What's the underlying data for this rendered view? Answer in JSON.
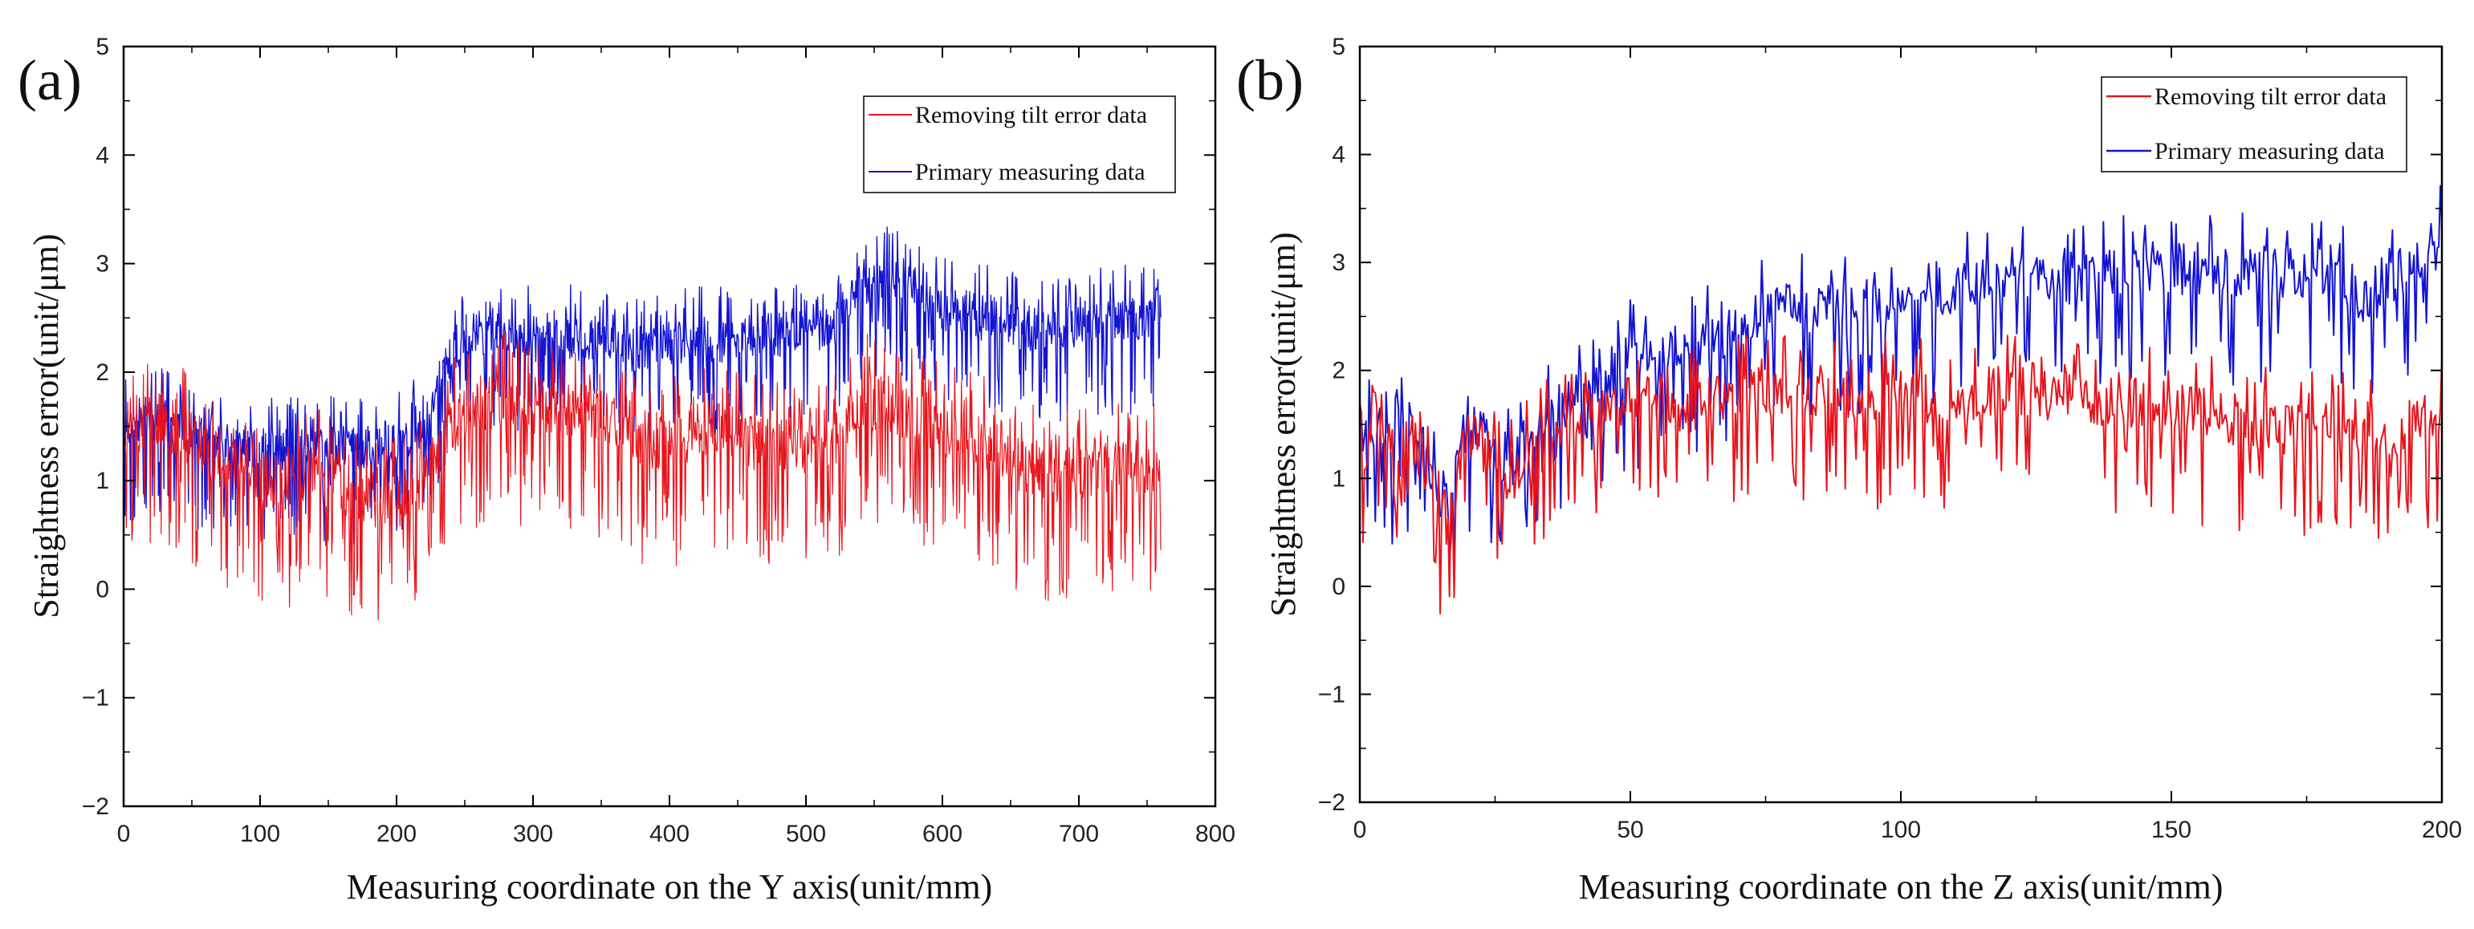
{
  "figure": {
    "background": "#ffffff"
  },
  "chart_data": [
    {
      "type": "line",
      "panel_label": "(a)",
      "xlabel": "Measuring coordinate on the Y axis(unit/mm)",
      "ylabel": "Straightness error(unit/μm)",
      "xlim": [
        0,
        800
      ],
      "ylim": [
        -2,
        5
      ],
      "xticks": [
        0,
        100,
        200,
        300,
        400,
        500,
        600,
        700,
        800
      ],
      "yticks": [
        -2,
        -1,
        0,
        1,
        2,
        3,
        4,
        5
      ],
      "grid": false,
      "legend_position": "top-right",
      "x_points": [
        0,
        20,
        40,
        60,
        80,
        100,
        120,
        140,
        160,
        180,
        200,
        220,
        240,
        260,
        280,
        300,
        320,
        340,
        360,
        380,
        400,
        420,
        440,
        460,
        480,
        500,
        520,
        540,
        560,
        580,
        600,
        620,
        640,
        660,
        680,
        700,
        720,
        740,
        760
      ],
      "series": [
        {
          "name": "Removing tilt error data",
          "color": "#e8141c",
          "values": [
            1.4,
            1.6,
            1.5,
            1.3,
            1.1,
            1.0,
            1.0,
            1.05,
            0.95,
            0.85,
            0.8,
            1.0,
            1.5,
            1.7,
            1.75,
            1.7,
            1.7,
            1.65,
            1.6,
            1.4,
            1.35,
            1.4,
            1.45,
            1.35,
            1.3,
            1.3,
            1.35,
            1.75,
            1.7,
            1.6,
            1.5,
            1.4,
            1.3,
            1.1,
            1.05,
            1.1,
            1.15,
            1.1,
            1.1
          ],
          "noise": 0.45
        },
        {
          "name": "Primary measuring data",
          "color": "#1414d2",
          "values": [
            1.5,
            1.6,
            1.5,
            1.4,
            1.3,
            1.3,
            1.3,
            1.35,
            1.3,
            1.3,
            1.35,
            1.5,
            2.2,
            2.35,
            2.35,
            2.3,
            2.35,
            2.3,
            2.2,
            2.2,
            2.25,
            2.3,
            2.3,
            2.3,
            2.35,
            2.4,
            2.4,
            2.8,
            2.85,
            2.8,
            2.6,
            2.5,
            2.5,
            2.4,
            2.4,
            2.45,
            2.5,
            2.5,
            2.55
          ],
          "noise": 0.35
        }
      ]
    },
    {
      "type": "line",
      "panel_label": "(b)",
      "xlabel": "Measuring coordinate on the Z axis(unit/mm)",
      "ylabel": "Straightness error(unit/μm)",
      "xlim": [
        0,
        200
      ],
      "ylim": [
        -2,
        5
      ],
      "xticks": [
        0,
        50,
        100,
        150,
        200
      ],
      "yticks": [
        -2,
        -1,
        0,
        1,
        2,
        3,
        4,
        5
      ],
      "grid": false,
      "legend_position": "top-right",
      "x_points": [
        0,
        10,
        16,
        20,
        28,
        35,
        40,
        50,
        60,
        70,
        80,
        90,
        100,
        110,
        120,
        130,
        140,
        150,
        160,
        170,
        180,
        187,
        190,
        195,
        200
      ],
      "series": [
        {
          "name": "Removing tilt error data",
          "color": "#e8141c",
          "values": [
            1.3,
            1.35,
            0.6,
            1.45,
            1.0,
            1.5,
            1.6,
            1.75,
            1.65,
            1.75,
            1.85,
            1.75,
            1.75,
            1.7,
            1.85,
            1.75,
            1.7,
            1.65,
            1.55,
            1.45,
            1.45,
            1.5,
            1.2,
            1.5,
            1.6
          ],
          "noise": 0.4
        },
        {
          "name": "Primary measuring data",
          "color": "#1414d2",
          "values": [
            1.35,
            1.45,
            0.7,
            1.55,
            1.1,
            1.6,
            1.8,
            2.1,
            2.2,
            2.4,
            2.6,
            2.55,
            2.6,
            2.75,
            2.9,
            2.85,
            2.9,
            2.95,
            2.9,
            2.9,
            2.9,
            2.6,
            2.8,
            3.0,
            3.2
          ],
          "noise": 0.4
        }
      ]
    }
  ]
}
